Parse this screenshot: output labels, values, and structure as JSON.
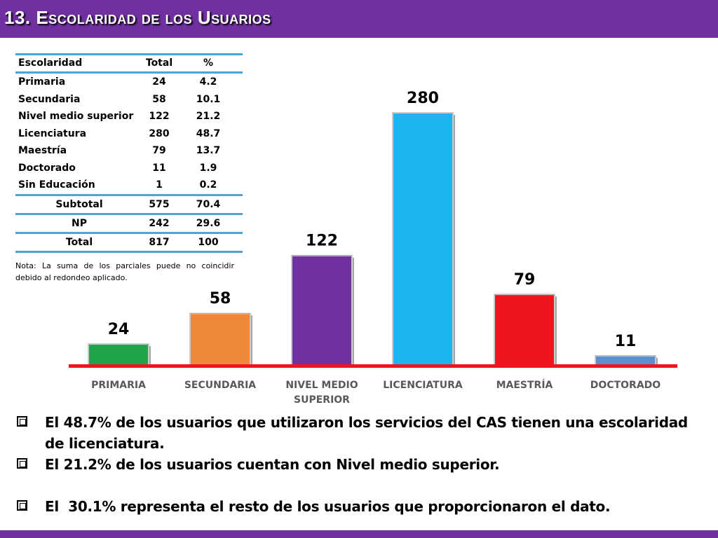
{
  "header": {
    "title": "13. Escolaridad de los Usuarios",
    "color": "#7030a0"
  },
  "table": {
    "headers": [
      "Escolaridad",
      "Total",
      "%"
    ],
    "rows": [
      [
        "Primaria",
        "24",
        "4.2"
      ],
      [
        "Secundaria",
        "58",
        "10.1"
      ],
      [
        "Nivel medio superior",
        "122",
        "21.2"
      ],
      [
        "Licenciatura",
        "280",
        "48.7"
      ],
      [
        "Maestría",
        "79",
        "13.7"
      ],
      [
        "Doctorado",
        "11",
        "1.9"
      ],
      [
        "Sin Educación",
        "1",
        "0.2"
      ]
    ],
    "summary": [
      [
        "Subtotal",
        "575",
        "70.4"
      ],
      [
        "NP",
        "242",
        "29.6"
      ],
      [
        "Total",
        "817",
        "100"
      ]
    ]
  },
  "nota": "Nota: La suma de los parciales puede no coincidir debido al redondeo aplicado.",
  "chart_data": {
    "type": "bar",
    "categories": [
      "PRIMARIA",
      "SECUNDARIA",
      "NIVEL MEDIO SUPERIOR",
      "LICENCIATURA",
      "MAESTRÍA",
      "DOCTORADO"
    ],
    "values": [
      24,
      58,
      122,
      280,
      79,
      11
    ],
    "colors": [
      "#1fa64a",
      "#f0883a",
      "#7030a0",
      "#1eb4f2",
      "#f0141e",
      "#5b8fd0"
    ],
    "baseline_color": "#f0141e",
    "title": "",
    "xlabel": "",
    "ylabel": "",
    "ylim": [
      0,
      280
    ],
    "grid": false,
    "legend": "none"
  },
  "bullets": [
    "El 48.7% de los usuarios que utilizaron los servicios del CAS tienen una escolaridad de licenciatura.",
    "El 21.2% de los usuarios cuentan con Nivel medio superior.",
    "El  30.1% representa el resto de los usuarios que proporcionaron el dato."
  ]
}
